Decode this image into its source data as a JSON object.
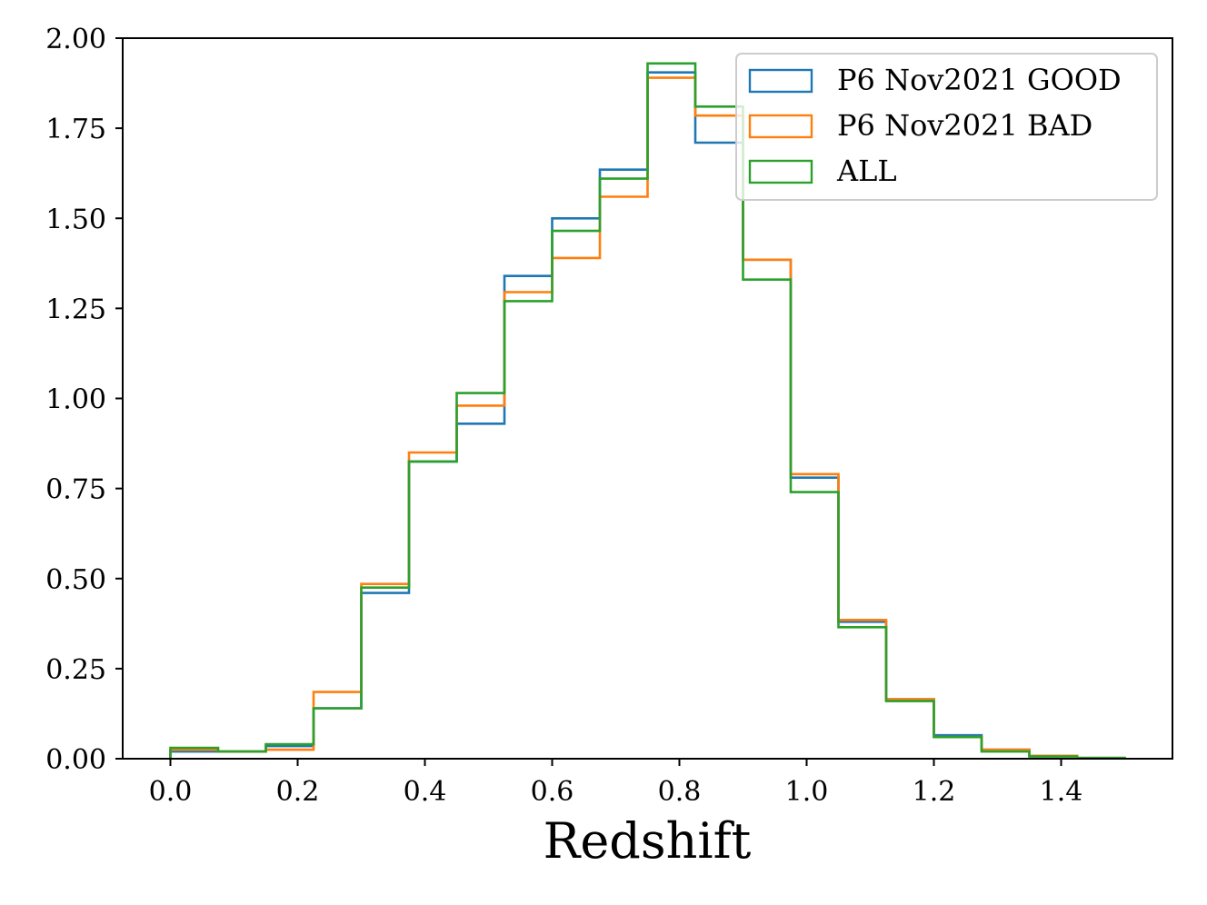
{
  "chart_data": {
    "type": "histogram-step",
    "title": "",
    "xlabel": "Redshift",
    "ylabel": "",
    "xlim": [
      -0.075,
      1.575
    ],
    "ylim": [
      0.0,
      2.0
    ],
    "xticks": [
      0.0,
      0.2,
      0.4,
      0.6,
      0.8,
      1.0,
      1.2,
      1.4
    ],
    "xtick_labels": [
      "0.0",
      "0.2",
      "0.4",
      "0.6",
      "0.8",
      "1.0",
      "1.2",
      "1.4"
    ],
    "yticks": [
      0.0,
      0.25,
      0.5,
      0.75,
      1.0,
      1.25,
      1.5,
      1.75,
      2.0
    ],
    "ytick_labels": [
      "0.00",
      "0.25",
      "0.50",
      "0.75",
      "1.00",
      "1.25",
      "1.50",
      "1.75",
      "2.00"
    ],
    "bin_edges": [
      0.0,
      0.075,
      0.15,
      0.225,
      0.3,
      0.375,
      0.45,
      0.525,
      0.6,
      0.675,
      0.75,
      0.825,
      0.9,
      0.975,
      1.05,
      1.125,
      1.2,
      1.275,
      1.35,
      1.425,
      1.5
    ],
    "series": [
      {
        "name": "P6 Nov2021 GOOD",
        "color": "#1f77b4",
        "values": [
          0.02,
          0.02,
          0.035,
          0.14,
          0.46,
          0.825,
          0.93,
          1.34,
          1.5,
          1.635,
          1.905,
          1.71,
          1.385,
          0.78,
          0.38,
          0.165,
          0.065,
          0.025,
          0.008,
          0.002
        ]
      },
      {
        "name": "P6 Nov2021 BAD",
        "color": "#ff7f0e",
        "values": [
          0.025,
          0.02,
          0.025,
          0.185,
          0.485,
          0.85,
          0.98,
          1.295,
          1.39,
          1.56,
          1.89,
          1.785,
          1.385,
          0.79,
          0.385,
          0.165,
          0.06,
          0.025,
          0.008,
          0.002
        ]
      },
      {
        "name": "ALL",
        "color": "#2ca02c",
        "values": [
          0.03,
          0.02,
          0.04,
          0.14,
          0.475,
          0.825,
          1.015,
          1.27,
          1.465,
          1.61,
          1.93,
          1.81,
          1.33,
          0.74,
          0.365,
          0.16,
          0.06,
          0.02,
          0.006,
          0.002
        ]
      }
    ],
    "legend": {
      "placement": "top-right",
      "entries": [
        "P6 Nov2021 GOOD",
        "P6 Nov2021 BAD",
        "ALL"
      ]
    },
    "grid": false
  }
}
